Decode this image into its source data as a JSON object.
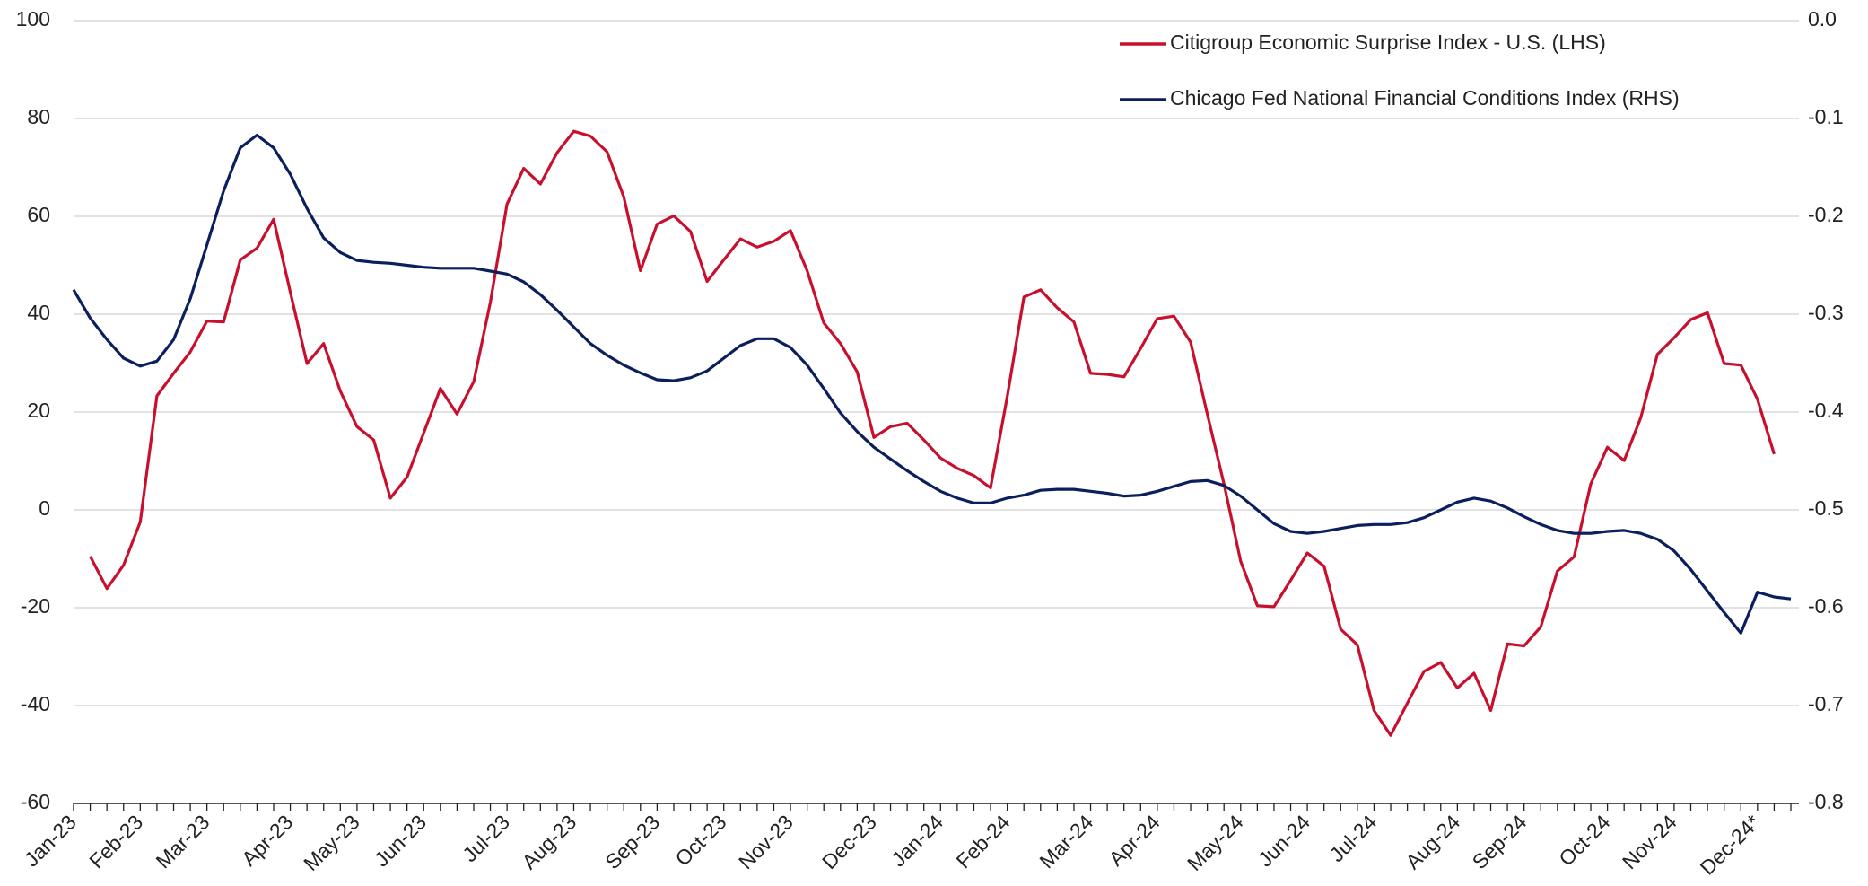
{
  "chart_data": {
    "type": "line",
    "categories": [
      "Jan-23",
      null,
      null,
      null,
      "Feb-23",
      null,
      null,
      null,
      "Mar-23",
      null,
      null,
      null,
      null,
      "Apr-23",
      null,
      null,
      null,
      "May-23",
      null,
      null,
      null,
      "Jun-23",
      null,
      null,
      null,
      null,
      "Jul-23",
      null,
      null,
      null,
      "Aug-23",
      null,
      null,
      null,
      null,
      "Sep-23",
      null,
      null,
      null,
      "Oct-23",
      null,
      null,
      null,
      "Nov-23",
      null,
      null,
      null,
      null,
      "Dec-23",
      null,
      null,
      null,
      "Jan-24",
      null,
      null,
      null,
      "Feb-24",
      null,
      null,
      null,
      null,
      "Mar-24",
      null,
      null,
      null,
      "Apr-24",
      null,
      null,
      null,
      null,
      "May-24",
      null,
      null,
      null,
      "Jun-24",
      null,
      null,
      null,
      "Jul-24",
      null,
      null,
      null,
      null,
      "Aug-24",
      null,
      null,
      null,
      "Sep-24",
      null,
      null,
      null,
      null,
      "Oct-24",
      null,
      null,
      null,
      "Nov-24",
      null,
      null,
      null,
      null,
      "Dec-24*",
      null,
      null
    ],
    "series": [
      {
        "name": "Citigroup Economic Surprise Index - U.S. (LHS)",
        "color": "#c8102e",
        "axis": "y",
        "values": [
          null,
          -9.5,
          -16.1,
          -11.3,
          -2.5,
          23.3,
          27.9,
          32.3,
          38.6,
          38.4,
          51.1,
          53.5,
          59.4,
          44.5,
          29.9,
          34.0,
          24.3,
          17.0,
          14.3,
          2.4,
          6.7,
          15.7,
          24.8,
          19.6,
          26.2,
          42.5,
          62.5,
          69.8,
          66.6,
          73.0,
          77.4,
          76.4,
          73.2,
          64.0,
          48.9,
          58.4,
          60.1,
          56.9,
          46.7,
          51.1,
          55.4,
          53.7,
          54.9,
          57.1,
          48.9,
          38.2,
          34.0,
          28.2,
          14.8,
          17.0,
          17.7,
          14.3,
          10.6,
          8.5,
          7.0,
          4.5,
          23.1,
          43.5,
          45.0,
          41.3,
          38.4,
          27.9,
          27.7,
          27.2,
          33.0,
          39.1,
          39.6,
          34.3,
          19.6,
          5.3,
          -10.5,
          -19.6,
          -19.8,
          -14.4,
          -8.8,
          -11.5,
          -24.4,
          -27.6,
          -41.0,
          -46.1,
          -39.5,
          -33.0,
          -31.2,
          -36.4,
          -33.4,
          -41.0,
          -27.4,
          -27.8,
          -23.9,
          -12.5,
          -9.6,
          5.3,
          12.8,
          10.1,
          18.9,
          31.8,
          35.2,
          38.9,
          40.3,
          29.9,
          29.6,
          22.6,
          11.4,
          null
        ]
      },
      {
        "name": "Chicago Fed National Financial Conditions Index (RHS)",
        "color": "#0a1f5c",
        "axis": "y2",
        "values": [
          -0.275,
          -0.304,
          -0.326,
          -0.345,
          -0.353,
          -0.348,
          -0.326,
          -0.284,
          -0.229,
          -0.174,
          -0.13,
          -0.117,
          -0.13,
          -0.157,
          -0.192,
          -0.222,
          -0.237,
          -0.245,
          -0.247,
          -0.248,
          -0.25,
          -0.252,
          -0.253,
          -0.253,
          -0.253,
          -0.256,
          -0.259,
          -0.267,
          -0.28,
          -0.296,
          -0.313,
          -0.33,
          -0.342,
          -0.352,
          -0.36,
          -0.367,
          -0.368,
          -0.365,
          -0.358,
          -0.345,
          -0.332,
          -0.325,
          -0.325,
          -0.334,
          -0.352,
          -0.376,
          -0.401,
          -0.42,
          -0.436,
          -0.448,
          -0.46,
          -0.471,
          -0.481,
          -0.488,
          -0.493,
          -0.493,
          -0.488,
          -0.485,
          -0.48,
          -0.479,
          -0.479,
          -0.481,
          -0.483,
          -0.486,
          -0.485,
          -0.481,
          -0.476,
          -0.471,
          -0.47,
          -0.475,
          -0.486,
          -0.5,
          -0.514,
          -0.522,
          -0.524,
          -0.522,
          -0.519,
          -0.516,
          -0.515,
          -0.515,
          -0.513,
          -0.508,
          -0.5,
          -0.492,
          -0.488,
          -0.491,
          -0.498,
          -0.507,
          -0.515,
          -0.521,
          -0.524,
          -0.524,
          -0.522,
          -0.521,
          -0.524,
          -0.53,
          -0.542,
          -0.561,
          -0.583,
          -0.605,
          -0.626,
          -0.584,
          -0.589,
          -0.591
        ]
      }
    ],
    "ylim": [
      -60,
      100
    ],
    "yticks": [
      -60,
      -40,
      -20,
      0,
      20,
      40,
      60,
      80,
      100
    ],
    "y2lim": [
      -0.8,
      0
    ],
    "y2ticks": [
      -0.8,
      -0.7,
      -0.6,
      -0.5,
      -0.4,
      -0.3,
      -0.2,
      -0.1,
      {
        "value": 0,
        "label": "0.0"
      }
    ],
    "grid": true,
    "legend": "top-right"
  }
}
